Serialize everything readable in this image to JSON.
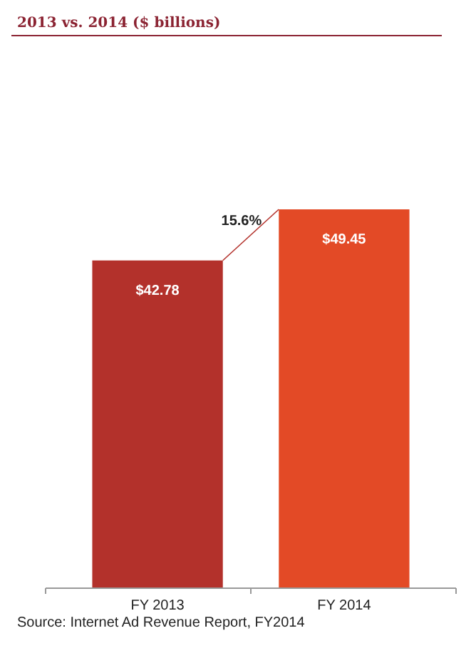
{
  "chart_data": {
    "type": "bar",
    "title": "2013 vs. 2014 ($ billions)",
    "categories": [
      "FY 2013",
      "FY 2014"
    ],
    "values": [
      42.78,
      49.45
    ],
    "colors": [
      "#b3312b",
      "#e34a26"
    ],
    "value_labels": [
      "$42.78",
      "$49.45"
    ],
    "annotations": [
      "15.6%",
      "Source: Internet Ad Revenue Report, FY2014"
    ],
    "data_labels": false
  }
}
